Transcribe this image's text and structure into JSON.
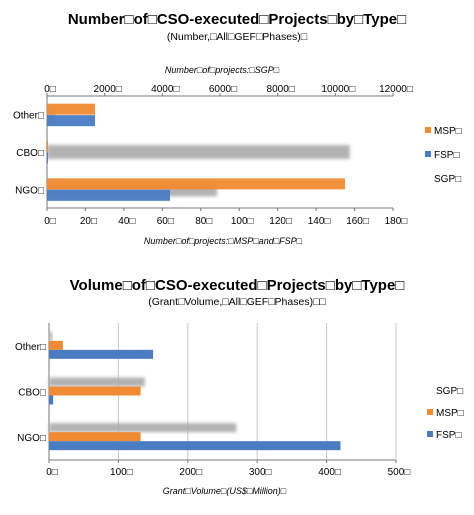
{
  "chart_data": [
    {
      "type": "bar",
      "orientation": "horizontal",
      "title": "Number□of□CSO-executed□Projects□by□Type□",
      "subtitle": "(Number,□All□GEF□Phases)□",
      "categories": [
        "Other□",
        "CBO□",
        "NGO□"
      ],
      "top_axis": {
        "label": "Number□of□projects:□SGP□",
        "range": [
          0,
          12000
        ],
        "ticks": [
          "0□",
          "2000□",
          "4000□",
          "6000□",
          "8000□",
          "10000□",
          "12000□"
        ]
      },
      "bottom_axis": {
        "label": "Number□of□projects:□MSP□and□FSP□",
        "range": [
          0,
          180
        ],
        "ticks": [
          "0□",
          "20□",
          "40□",
          "60□",
          "80□",
          "100□",
          "120□",
          "140□",
          "160□",
          "180□"
        ]
      },
      "series": [
        {
          "name": "SGP□",
          "color": "#aaaaaa",
          "axis": "top",
          "values": [
            300,
            10500,
            5900
          ]
        },
        {
          "name": "MSP□",
          "color": "#f08a33",
          "axis": "bottom",
          "values": [
            25,
            0.5,
            155
          ]
        },
        {
          "name": "FSP□",
          "color": "#4a7cc4",
          "axis": "bottom",
          "values": [
            25,
            0.5,
            64
          ]
        }
      ],
      "legend_order": [
        "MSP□",
        "FSP□",
        "SGP□"
      ],
      "legend_position": "right",
      "grid": false
    },
    {
      "type": "bar",
      "orientation": "horizontal",
      "title": "Volume□of□CSO-executed□Projects□by□Type□",
      "subtitle": "(Grant□Volume,□All□GEF□Phases)□□",
      "categories": [
        "Other□",
        "CBO□",
        "NGO□"
      ],
      "xlabel": "Grant□Volume□(US$□Million)□",
      "xlim": [
        0,
        500
      ],
      "ticks": [
        "0□",
        "100□",
        "200□",
        "300□",
        "400□",
        "500□"
      ],
      "series": [
        {
          "name": "SGP□",
          "color": "#aaaaaa",
          "values": [
            5,
            138,
            270
          ]
        },
        {
          "name": "MSP□",
          "color": "#f08a33",
          "values": [
            20,
            132,
            132
          ]
        },
        {
          "name": "FSP□",
          "color": "#4a7cc4",
          "values": [
            150,
            6,
            420
          ]
        }
      ],
      "legend_order": [
        "SGP□",
        "MSP□",
        "FSP□"
      ],
      "legend_position": "right",
      "grid": "vertical"
    }
  ]
}
